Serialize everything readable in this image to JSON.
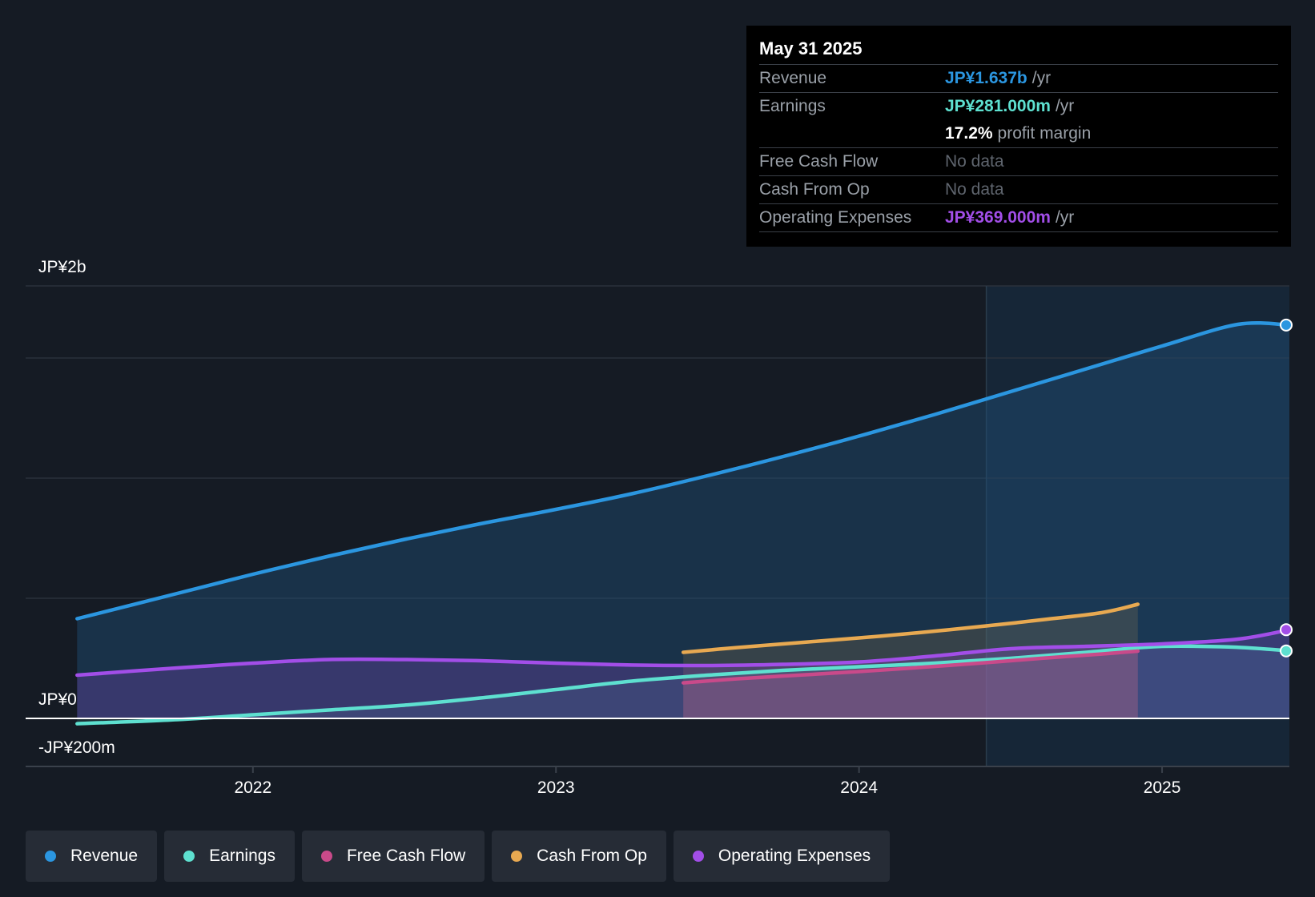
{
  "tooltip": {
    "date": "May 31 2025",
    "rows": {
      "revenue": {
        "label": "Revenue",
        "value": "JP¥1.637b",
        "unit": "/yr"
      },
      "earnings": {
        "label": "Earnings",
        "value": "JP¥281.000m",
        "unit": "/yr"
      },
      "margin": {
        "value": "17.2%",
        "unit": "profit margin"
      },
      "fcf": {
        "label": "Free Cash Flow",
        "value": "No data"
      },
      "cfo": {
        "label": "Cash From Op",
        "value": "No data"
      },
      "opex": {
        "label": "Operating Expenses",
        "value": "JP¥369.000m",
        "unit": "/yr"
      }
    }
  },
  "legend": [
    {
      "label": "Revenue",
      "color": "#2b96e0"
    },
    {
      "label": "Earnings",
      "color": "#5ee0d0"
    },
    {
      "label": "Free Cash Flow",
      "color": "#c94a8a"
    },
    {
      "label": "Cash From Op",
      "color": "#e8a951"
    },
    {
      "label": "Operating Expenses",
      "color": "#a24ee8"
    }
  ],
  "chart_data": {
    "type": "line",
    "y_tick_labels": [
      "JP¥2b",
      "JP¥0",
      "-JP¥200m"
    ],
    "x_tick_labels": [
      "2022",
      "2023",
      "2024",
      "2025"
    ],
    "ylim": [
      -200,
      1800
    ],
    "x_range": [
      2021.25,
      2025.42
    ],
    "forecast_start": 2024.42,
    "series": [
      {
        "name": "Revenue",
        "color": "#2b96e0",
        "x": [
          2021.42,
          2021.75,
          2022.0,
          2022.25,
          2022.5,
          2022.75,
          2023.0,
          2023.25,
          2023.5,
          2023.75,
          2024.0,
          2024.25,
          2024.5,
          2024.75,
          2025.0,
          2025.25,
          2025.42
        ],
        "y": [
          415,
          520,
          600,
          675,
          745,
          810,
          870,
          935,
          1010,
          1090,
          1175,
          1265,
          1360,
          1455,
          1550,
          1640,
          1637
        ]
      },
      {
        "name": "Earnings",
        "color": "#5ee0d0",
        "x": [
          2021.42,
          2021.75,
          2022.0,
          2022.25,
          2022.5,
          2022.75,
          2023.0,
          2023.25,
          2023.5,
          2023.75,
          2024.0,
          2024.25,
          2024.5,
          2024.75,
          2025.0,
          2025.25,
          2025.42
        ],
        "y": [
          -22,
          -5,
          15,
          35,
          55,
          85,
          120,
          155,
          180,
          200,
          215,
          230,
          250,
          275,
          300,
          296,
          281
        ]
      },
      {
        "name": "Free Cash Flow",
        "color": "#c94a8a",
        "x": [
          2023.42,
          2023.6,
          2023.8,
          2024.0,
          2024.2,
          2024.42,
          2024.6,
          2024.8,
          2024.92
        ],
        "y": [
          148,
          165,
          180,
          195,
          212,
          232,
          250,
          268,
          280
        ]
      },
      {
        "name": "Cash From Op",
        "color": "#e8a951",
        "x": [
          2023.42,
          2023.6,
          2023.8,
          2024.0,
          2024.2,
          2024.42,
          2024.6,
          2024.8,
          2024.92
        ],
        "y": [
          275,
          295,
          315,
          335,
          357,
          385,
          410,
          440,
          475
        ]
      },
      {
        "name": "Operating Expenses",
        "color": "#a24ee8",
        "x": [
          2021.42,
          2021.75,
          2022.0,
          2022.25,
          2022.5,
          2022.75,
          2023.0,
          2023.25,
          2023.5,
          2023.75,
          2024.0,
          2024.25,
          2024.5,
          2024.75,
          2025.0,
          2025.25,
          2025.42
        ],
        "y": [
          180,
          210,
          230,
          245,
          245,
          240,
          230,
          222,
          220,
          225,
          235,
          260,
          290,
          300,
          310,
          330,
          369
        ]
      }
    ]
  }
}
